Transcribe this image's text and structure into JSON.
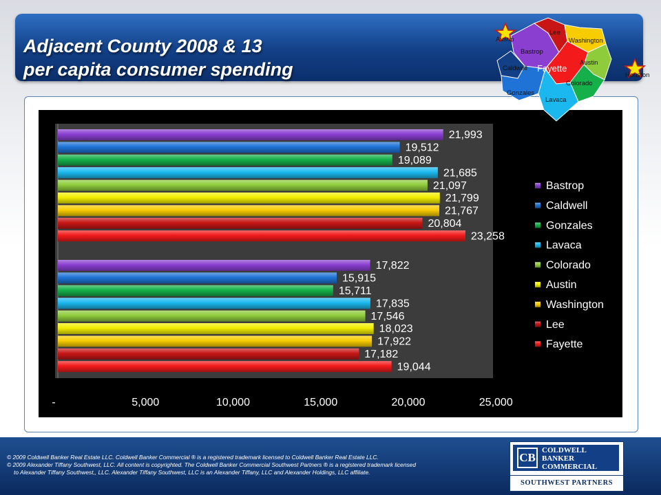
{
  "header": {
    "title_line1": "Adjacent County 2008 & 13",
    "title_line2": "per capita consumer spending"
  },
  "map": {
    "labels": {
      "austin_city": "Austin",
      "lee": "Lee",
      "washington": "Washington",
      "bastrop": "Bastrop",
      "austin": "Austin",
      "caldwell": "Caldwell",
      "fayette": "Fayette",
      "colorado": "Colorado",
      "gonzales": "Gonzales",
      "lavaca": "Lavaca",
      "houston_city": "Houston"
    }
  },
  "chart_data": {
    "type": "bar",
    "orientation": "horizontal",
    "xlim": [
      0,
      25000
    ],
    "x_ticks": [
      "-",
      "5,000",
      "10,000",
      "15,000",
      "20,000",
      "25,000"
    ],
    "x_tick_values": [
      0,
      5000,
      10000,
      15000,
      20000,
      25000
    ],
    "legend_position": "right",
    "series": [
      {
        "name": "Bastrop",
        "color": "#8a3fd1"
      },
      {
        "name": "Caldwell",
        "color": "#1f73d6"
      },
      {
        "name": "Gonzales",
        "color": "#16b04a"
      },
      {
        "name": "Lavaca",
        "color": "#1ab8ee"
      },
      {
        "name": "Colorado",
        "color": "#8fcc3c"
      },
      {
        "name": "Austin",
        "color": "#f2ee00"
      },
      {
        "name": "Washington",
        "color": "#f7cc00"
      },
      {
        "name": "Lee",
        "color": "#c81616"
      },
      {
        "name": "Fayette",
        "color": "#f21a1a"
      }
    ],
    "groups": [
      {
        "values": [
          21993,
          19512,
          19089,
          21685,
          21097,
          21799,
          21767,
          20804,
          23258
        ],
        "labels": [
          "21,993",
          "19,512",
          "19,089",
          "21,685",
          "21,097",
          "21,799",
          "21,767",
          "20,804",
          "23,258"
        ]
      },
      {
        "values": [
          17822,
          15915,
          15711,
          17835,
          17546,
          18023,
          17922,
          17182,
          19044
        ],
        "labels": [
          "17,822",
          "15,915",
          "15,711",
          "17,835",
          "17,546",
          "18,023",
          "17,922",
          "17,182",
          "19,044"
        ]
      }
    ]
  },
  "footer": {
    "copyright_line1": "© 2009 Coldwell Banker Real Estate LLC. Coldwell Banker Commercial ® is a registered trademark licensed to Coldwell Banker Real Estate LLC.",
    "copyright_line2": "© 2009 Alexander Tiffany Southwest, LLC. All content is copyrighted. The Coldwell Banker Commercial Southwest Partners ® is a registered trademark licensed",
    "copyright_line3": "to Alexander Tiffany Southwest,, LLC.  Alexander Tiffany Southwest, LLC is an Alexander Tiffany, LLC and Alexander Holdings, LLC affiliate.",
    "logo_mark": "CB",
    "logo_line1": "COLDWELL",
    "logo_line2": "BANKER",
    "logo_line3": "COMMERCIAL",
    "logo_sub": "SOUTHWEST PARTNERS"
  }
}
